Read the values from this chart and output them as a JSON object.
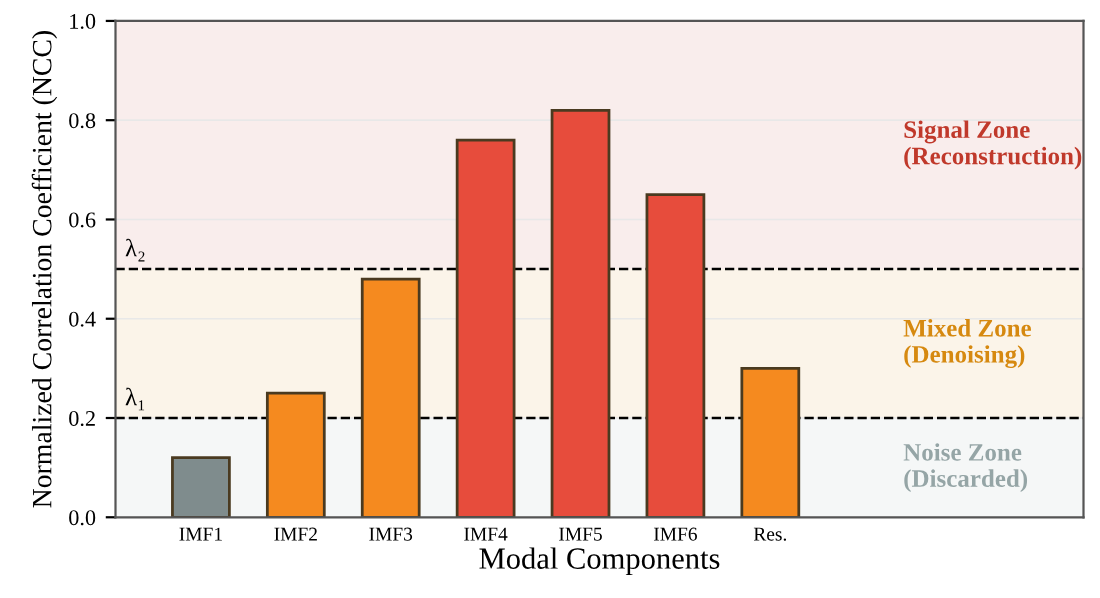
{
  "chart_data": {
    "type": "bar",
    "xlabel": "Modal Components",
    "ylabel": "Normalized Correlation Coefficient (NCC)",
    "categories": [
      "IMF1",
      "IMF2",
      "IMF3",
      "IMF4",
      "IMF5",
      "IMF6",
      "Res."
    ],
    "values": [
      0.12,
      0.25,
      0.48,
      0.76,
      0.82,
      0.65,
      0.3
    ],
    "colors": [
      "#7f8c8d",
      "#f58a1f",
      "#f58a1f",
      "#e74c3c",
      "#e74c3c",
      "#e74c3c",
      "#f58a1f"
    ],
    "ylim": [
      0,
      1
    ],
    "yticks": [
      {
        "value": 0,
        "label": "0.0"
      },
      {
        "value": 0.2,
        "label": "0.2"
      },
      {
        "value": 0.4,
        "label": "0.4"
      },
      {
        "value": 0.6,
        "label": "0.6"
      },
      {
        "value": 0.8,
        "label": "0.8"
      },
      {
        "value": 1,
        "label": "1.0"
      }
    ],
    "grid": "y",
    "ref_lines": [
      {
        "axis": "y",
        "value": 0.2,
        "label": "λ₁",
        "color": "#000000",
        "line_style": "dashed"
      },
      {
        "axis": "y",
        "value": 0.5,
        "label": "λ₂",
        "color": "#000000",
        "line_style": "dashed"
      }
    ],
    "bands": [
      {
        "axis": "y",
        "from": 0,
        "to": 0.2,
        "label": "Noise Zone\n(Discarded)",
        "color": "#95a5a6"
      },
      {
        "axis": "y",
        "from": 0.2,
        "to": 0.5,
        "label": "Mixed Zone\n(Denoising)",
        "color": "#d68910"
      },
      {
        "axis": "y",
        "from": 0.5,
        "to": 1,
        "label": "Signal Zone\n(Reconstruction)",
        "color": "#c0392b"
      }
    ]
  }
}
